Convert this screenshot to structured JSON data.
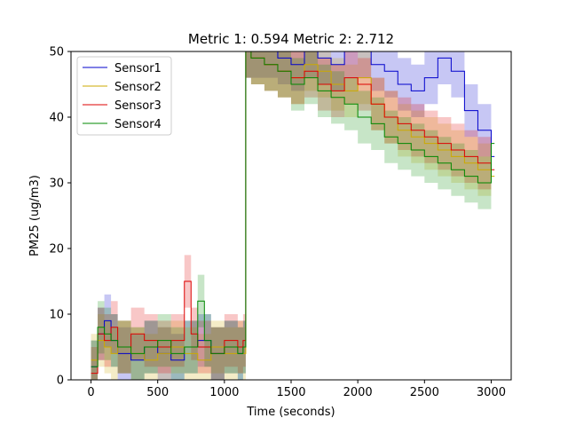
{
  "chart_data": {
    "type": "line",
    "title": "Metric 1: 0.594   Metric 2: 2.712",
    "xlabel": "Time (seconds)",
    "ylabel": "PM25 (ug/m3)",
    "xlim": [
      -150,
      3150
    ],
    "ylim": [
      0,
      50
    ],
    "xticks": [
      0,
      500,
      1000,
      1500,
      2000,
      2500,
      3000
    ],
    "yticks": [
      0,
      10,
      20,
      30,
      40,
      50
    ],
    "grid": false,
    "legend_position": "top-left",
    "series": [
      {
        "name": "Sensor1",
        "color": "#0000cc",
        "x": [
          0,
          50,
          100,
          150,
          200,
          300,
          400,
          500,
          600,
          700,
          800,
          900,
          1000,
          1100,
          1140,
          1160,
          1200,
          1300,
          1400,
          1500,
          1600,
          1700,
          1800,
          1900,
          2000,
          2100,
          2200,
          2300,
          2400,
          2500,
          2600,
          2700,
          2800,
          2900,
          3000
        ],
        "y": [
          2,
          7,
          9,
          6,
          4,
          3,
          5,
          4,
          3,
          5,
          6,
          4,
          5,
          4,
          5,
          50,
          50,
          50,
          49,
          48,
          50,
          49,
          48,
          50,
          50,
          48,
          47,
          45,
          44,
          46,
          49,
          47,
          41,
          38,
          34
        ]
      },
      {
        "name": "Sensor2",
        "color": "#ccaa00",
        "x": [
          0,
          50,
          100,
          150,
          200,
          300,
          400,
          500,
          600,
          700,
          800,
          900,
          1000,
          1100,
          1140,
          1160,
          1200,
          1300,
          1400,
          1500,
          1600,
          1700,
          1800,
          1900,
          2000,
          2100,
          2200,
          2300,
          2400,
          2500,
          2600,
          2700,
          2800,
          2900,
          3000
        ],
        "y": [
          3,
          6,
          5,
          4,
          5,
          4,
          3,
          4,
          5,
          4,
          3,
          5,
          4,
          5,
          4,
          50,
          49,
          48,
          47,
          46,
          48,
          47,
          45,
          44,
          46,
          42,
          40,
          38,
          37,
          36,
          35,
          34,
          33,
          32,
          31
        ]
      },
      {
        "name": "Sensor3",
        "color": "#dd0000",
        "x": [
          0,
          50,
          100,
          150,
          200,
          300,
          400,
          500,
          600,
          700,
          750,
          800,
          900,
          1000,
          1100,
          1140,
          1160,
          1200,
          1300,
          1400,
          1500,
          1600,
          1700,
          1800,
          1900,
          2000,
          2100,
          2200,
          2300,
          2400,
          2500,
          2600,
          2700,
          2800,
          2900,
          3000
        ],
        "y": [
          1,
          7,
          6,
          8,
          5,
          7,
          6,
          5,
          6,
          15,
          7,
          5,
          4,
          6,
          5,
          6,
          50,
          49,
          48,
          47,
          46,
          47,
          45,
          44,
          46,
          45,
          42,
          40,
          39,
          38,
          37,
          36,
          35,
          34,
          33,
          32
        ]
      },
      {
        "name": "Sensor4",
        "color": "#008800",
        "x": [
          0,
          50,
          100,
          150,
          200,
          300,
          400,
          500,
          600,
          700,
          800,
          850,
          900,
          1000,
          1100,
          1140,
          1160,
          1200,
          1300,
          1400,
          1500,
          1600,
          1700,
          1800,
          1900,
          2000,
          2100,
          2200,
          2300,
          2400,
          2500,
          2600,
          2700,
          2800,
          2900,
          3000
        ],
        "y": [
          2,
          8,
          7,
          6,
          5,
          4,
          5,
          6,
          4,
          5,
          12,
          6,
          4,
          5,
          4,
          5,
          50,
          49,
          48,
          47,
          45,
          46,
          44,
          43,
          42,
          40,
          39,
          37,
          36,
          35,
          34,
          33,
          32,
          31,
          30,
          36
        ]
      }
    ]
  }
}
